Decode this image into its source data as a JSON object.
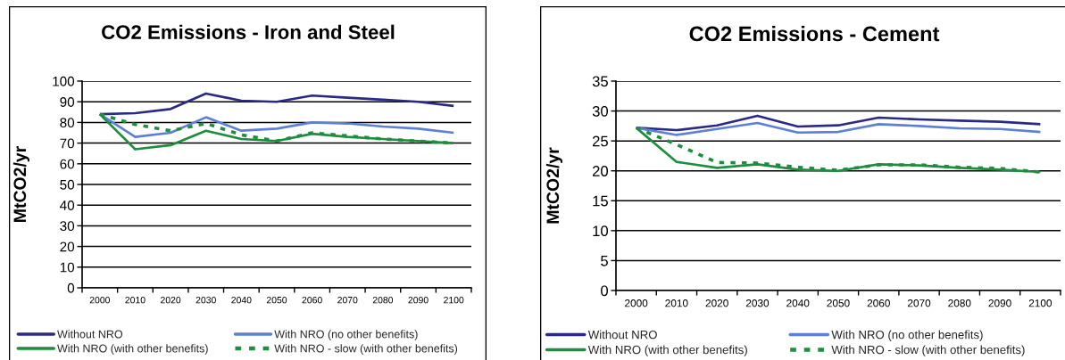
{
  "chart_data": [
    {
      "type": "line",
      "title": "CO2 Emissions - Iron and Steel",
      "ylabel": "MtCO2/yr",
      "categories": [
        "2000",
        "2010",
        "2020",
        "2030",
        "2040",
        "2050",
        "2060",
        "2070",
        "2080",
        "2090",
        "2100"
      ],
      "ylim": [
        0,
        100
      ],
      "yticks": [
        0,
        10,
        20,
        30,
        40,
        50,
        60,
        70,
        80,
        90,
        100
      ],
      "grid": "y",
      "legend": "bottom",
      "series": [
        {
          "name": "Without NRO",
          "color": "#2a2a86",
          "line_style": "solid",
          "values": [
            84,
            84.5,
            86.5,
            94,
            90.5,
            90,
            93,
            92,
            91,
            90,
            88
          ]
        },
        {
          "name": "With NRO (no other benefits)",
          "color": "#5b80d6",
          "line_style": "solid",
          "values": [
            84,
            73,
            75,
            82.5,
            76,
            77,
            80,
            79.5,
            78,
            77,
            75
          ]
        },
        {
          "name": "With NRO (with other benefits)",
          "color": "#1e8e3e",
          "line_style": "solid",
          "values": [
            84,
            67,
            69,
            76,
            72,
            71,
            74.5,
            73,
            72,
            71,
            70
          ]
        },
        {
          "name": "With NRO - slow (with other benefits)",
          "color": "#1e8e3e",
          "line_style": "dashed",
          "values": [
            84,
            79,
            76,
            79.5,
            74,
            71,
            75,
            73.5,
            72,
            71,
            70
          ]
        }
      ]
    },
    {
      "type": "line",
      "title": "CO2 Emissions - Cement",
      "ylabel": "MtCO2/yr",
      "categories": [
        "2000",
        "2010",
        "2020",
        "2030",
        "2040",
        "2050",
        "2060",
        "2070",
        "2080",
        "2090",
        "2100"
      ],
      "ylim": [
        0,
        35
      ],
      "yticks": [
        0,
        5,
        10,
        15,
        20,
        25,
        30,
        35
      ],
      "grid": "y",
      "legend": "bottom",
      "series": [
        {
          "name": "Without NRO",
          "color": "#2a2a86",
          "line_style": "solid",
          "values": [
            27.2,
            26.8,
            27.6,
            29.2,
            27.4,
            27.6,
            28.9,
            28.6,
            28.4,
            28.2,
            27.8
          ]
        },
        {
          "name": "With NRO (no other benefits)",
          "color": "#5b80d6",
          "line_style": "solid",
          "values": [
            27.2,
            26,
            27,
            28,
            26.4,
            26.5,
            27.8,
            27.5,
            27.1,
            27,
            26.5
          ]
        },
        {
          "name": "With NRO (with other benefits)",
          "color": "#1e8e3e",
          "line_style": "solid",
          "values": [
            27.2,
            21.5,
            20.5,
            21.1,
            20.2,
            20,
            21.1,
            20.9,
            20.5,
            20.2,
            19.8
          ]
        },
        {
          "name": "With NRO - slow (with other benefits)",
          "color": "#1e8e3e",
          "line_style": "dashed",
          "values": [
            27.2,
            24.4,
            21.4,
            21.3,
            20.6,
            20.1,
            21,
            21,
            20.6,
            20.4,
            19.8
          ]
        }
      ]
    }
  ]
}
